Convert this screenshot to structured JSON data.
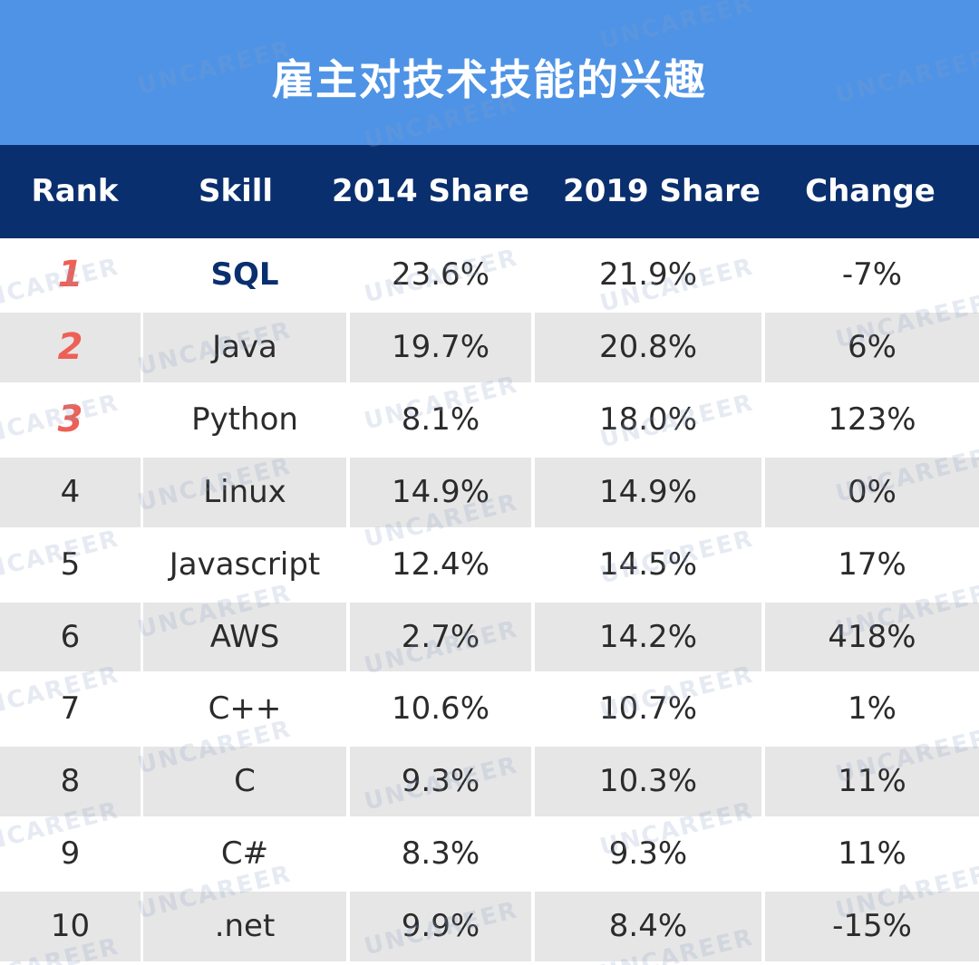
{
  "title": "雇主对技术技能的兴趣",
  "watermark_text": "UNCAREER",
  "colors": {
    "title_band": "#4e93e6",
    "header_band": "#0a2f6e",
    "top_rank": "#ee5f55",
    "top_skill": "#0a2f6e",
    "stripe": "#e6e6e6"
  },
  "chart_data": {
    "type": "table",
    "title": "雇主对技术技能的兴趣",
    "columns": [
      "Rank",
      "Skill",
      "2014 Share",
      "2019 Share",
      "Change"
    ],
    "rows": [
      {
        "rank": "1",
        "skill": "SQL",
        "share_2014": "23.6%",
        "share_2019": "21.9%",
        "change": "-7%"
      },
      {
        "rank": "2",
        "skill": "Java",
        "share_2014": "19.7%",
        "share_2019": "20.8%",
        "change": "6%"
      },
      {
        "rank": "3",
        "skill": "Python",
        "share_2014": "8.1%",
        "share_2019": "18.0%",
        "change": "123%"
      },
      {
        "rank": "4",
        "skill": "Linux",
        "share_2014": "14.9%",
        "share_2019": "14.9%",
        "change": "0%"
      },
      {
        "rank": "5",
        "skill": "Javascript",
        "share_2014": "12.4%",
        "share_2019": "14.5%",
        "change": "17%"
      },
      {
        "rank": "6",
        "skill": "AWS",
        "share_2014": "2.7%",
        "share_2019": "14.2%",
        "change": "418%"
      },
      {
        "rank": "7",
        "skill": "C++",
        "share_2014": "10.6%",
        "share_2019": "10.7%",
        "change": "1%"
      },
      {
        "rank": "8",
        "skill": "C",
        "share_2014": "9.3%",
        "share_2019": "10.3%",
        "change": "11%"
      },
      {
        "rank": "9",
        "skill": "C#",
        "share_2014": "8.3%",
        "share_2019": "9.3%",
        "change": "11%"
      },
      {
        "rank": "10",
        "skill": ".net",
        "share_2014": "9.9%",
        "share_2019": "8.4%",
        "change": "-15%"
      }
    ]
  }
}
